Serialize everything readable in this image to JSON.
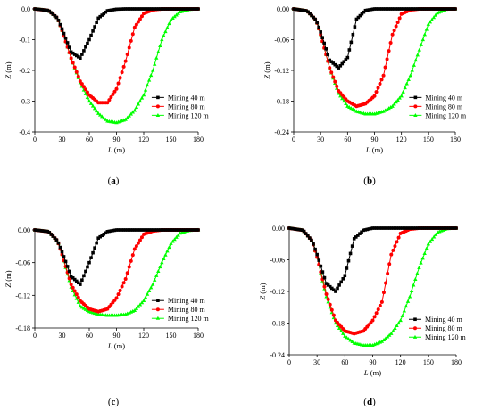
{
  "figure": {
    "panels": [
      {
        "caption": "(a)"
      },
      {
        "caption": "(b)"
      },
      {
        "caption": "(c)"
      },
      {
        "caption": "(d)"
      }
    ]
  },
  "colors": {
    "mining_40": "#000000",
    "mining_80": "#ff0000",
    "mining_120": "#00ff00",
    "axis": "#000000"
  },
  "chart_data": [
    {
      "type": "line",
      "caption": "(a)",
      "xlabel": "L (m)",
      "ylabel": "Z (m)",
      "xlim": [
        0,
        180
      ],
      "ylim": [
        -0.4,
        0.0
      ],
      "xticks": [
        0,
        30,
        60,
        90,
        120,
        150,
        180
      ],
      "yticks": [
        0.0,
        -0.1,
        -0.2,
        -0.3,
        -0.4
      ],
      "ytick_labels": [
        "0.0",
        "-0.1",
        "-0.2",
        "-0.3",
        "-0.4"
      ],
      "grid": false,
      "legend_position": "right",
      "x": [
        0,
        15,
        25,
        30,
        40,
        50,
        60,
        70,
        80,
        90,
        100,
        110,
        120,
        130,
        140,
        150,
        160,
        170,
        180
      ],
      "series": [
        {
          "name": "Mining 40 m",
          "marker": "square",
          "color": "#000000",
          "values": [
            0.0,
            -0.005,
            -0.03,
            -0.065,
            -0.14,
            -0.16,
            -0.1,
            -0.03,
            -0.006,
            -0.001,
            0.0,
            0.0,
            0.0,
            0.0,
            0.0,
            0.0,
            0.0,
            0.0,
            0.0
          ]
        },
        {
          "name": "Mining 80 m",
          "marker": "circle",
          "color": "#ff0000",
          "values": [
            0.0,
            -0.005,
            -0.03,
            -0.07,
            -0.16,
            -0.235,
            -0.28,
            -0.305,
            -0.305,
            -0.26,
            -0.17,
            -0.06,
            -0.015,
            -0.003,
            0.0,
            0.0,
            0.0,
            0.0,
            0.0
          ]
        },
        {
          "name": "Mining 120 m",
          "marker": "triangle",
          "color": "#00ff00",
          "values": [
            0.0,
            -0.005,
            -0.03,
            -0.07,
            -0.16,
            -0.24,
            -0.3,
            -0.34,
            -0.365,
            -0.37,
            -0.36,
            -0.33,
            -0.28,
            -0.2,
            -0.1,
            -0.035,
            -0.01,
            -0.002,
            0.0
          ]
        }
      ]
    },
    {
      "type": "line",
      "caption": "(b)",
      "xlabel": "L (m)",
      "ylabel": "Z (m)",
      "xlim": [
        0,
        180
      ],
      "ylim": [
        -0.24,
        0.0
      ],
      "xticks": [
        0,
        30,
        60,
        90,
        120,
        150,
        180
      ],
      "yticks": [
        0.0,
        -0.06,
        -0.12,
        -0.18,
        -0.24
      ],
      "ytick_labels": [
        "0.00",
        "-0.06",
        "-0.12",
        "-0.18",
        "-0.24"
      ],
      "grid": false,
      "legend_position": "right",
      "x": [
        0,
        15,
        25,
        30,
        40,
        50,
        60,
        70,
        80,
        90,
        100,
        110,
        120,
        130,
        140,
        150,
        160,
        170,
        180
      ],
      "series": [
        {
          "name": "Mining 40 m",
          "marker": "square",
          "color": "#000000",
          "values": [
            0.0,
            -0.004,
            -0.022,
            -0.045,
            -0.1,
            -0.115,
            -0.095,
            -0.02,
            -0.003,
            0.0,
            0.0,
            0.0,
            0.0,
            0.0,
            0.0,
            0.0,
            0.0,
            0.0,
            0.0
          ]
        },
        {
          "name": "Mining 80 m",
          "marker": "circle",
          "color": "#ff0000",
          "values": [
            0.0,
            -0.004,
            -0.022,
            -0.05,
            -0.115,
            -0.16,
            -0.18,
            -0.19,
            -0.185,
            -0.17,
            -0.13,
            -0.05,
            -0.01,
            -0.002,
            0.0,
            0.0,
            0.0,
            0.0,
            0.0
          ]
        },
        {
          "name": "Mining 120 m",
          "marker": "triangle",
          "color": "#00ff00",
          "values": [
            0.0,
            -0.004,
            -0.022,
            -0.05,
            -0.115,
            -0.165,
            -0.19,
            -0.2,
            -0.205,
            -0.205,
            -0.2,
            -0.19,
            -0.17,
            -0.13,
            -0.08,
            -0.03,
            -0.008,
            -0.001,
            0.0
          ]
        }
      ]
    },
    {
      "type": "line",
      "caption": "(c)",
      "xlabel": "L (m)",
      "ylabel": "Z (m)",
      "xlim": [
        0,
        180
      ],
      "ylim": [
        -0.18,
        0.0
      ],
      "xticks": [
        0,
        30,
        60,
        90,
        120,
        150,
        180
      ],
      "yticks": [
        0.0,
        -0.06,
        -0.12,
        -0.18
      ],
      "ytick_labels": [
        "0.00",
        "-0.06",
        "-0.12",
        "-0.18"
      ],
      "grid": false,
      "legend_position": "right",
      "x": [
        0,
        15,
        25,
        30,
        40,
        50,
        60,
        70,
        80,
        90,
        100,
        110,
        120,
        130,
        140,
        150,
        160,
        170,
        180
      ],
      "series": [
        {
          "name": "Mining 40 m",
          "marker": "square",
          "color": "#000000",
          "values": [
            0.0,
            -0.003,
            -0.02,
            -0.04,
            -0.085,
            -0.1,
            -0.06,
            -0.015,
            -0.003,
            0.0,
            0.0,
            0.0,
            0.0,
            0.0,
            0.0,
            0.0,
            0.0,
            0.0,
            0.0
          ]
        },
        {
          "name": "Mining 80 m",
          "marker": "circle",
          "color": "#ff0000",
          "values": [
            0.0,
            -0.003,
            -0.02,
            -0.045,
            -0.1,
            -0.13,
            -0.145,
            -0.15,
            -0.145,
            -0.125,
            -0.09,
            -0.035,
            -0.008,
            -0.002,
            0.0,
            0.0,
            0.0,
            0.0,
            0.0
          ]
        },
        {
          "name": "Mining 120 m",
          "marker": "triangle",
          "color": "#00ff00",
          "values": [
            0.0,
            -0.003,
            -0.02,
            -0.045,
            -0.105,
            -0.14,
            -0.15,
            -0.155,
            -0.157,
            -0.157,
            -0.155,
            -0.148,
            -0.13,
            -0.1,
            -0.06,
            -0.025,
            -0.006,
            -0.001,
            0.0
          ]
        }
      ]
    },
    {
      "type": "line",
      "caption": "(d)",
      "xlabel": "L (m)",
      "ylabel": "Z (m)",
      "xlim": [
        0,
        180
      ],
      "ylim": [
        -0.24,
        0.0
      ],
      "xticks": [
        0,
        30,
        60,
        90,
        120,
        150,
        180
      ],
      "yticks": [
        0.0,
        -0.06,
        -0.12,
        -0.18,
        -0.24
      ],
      "ytick_labels": [
        "0.00",
        "-0.06",
        "-0.12",
        "-0.18",
        "-0.24"
      ],
      "grid": false,
      "legend_position": "right",
      "x": [
        0,
        15,
        25,
        30,
        40,
        50,
        60,
        70,
        80,
        90,
        100,
        110,
        120,
        130,
        140,
        150,
        160,
        170,
        180
      ],
      "series": [
        {
          "name": "Mining 40 m",
          "marker": "square",
          "color": "#000000",
          "values": [
            0.0,
            -0.004,
            -0.025,
            -0.05,
            -0.105,
            -0.12,
            -0.09,
            -0.02,
            -0.004,
            0.0,
            0.0,
            0.0,
            0.0,
            0.0,
            0.0,
            0.0,
            0.0,
            0.0,
            0.0
          ]
        },
        {
          "name": "Mining 80 m",
          "marker": "circle",
          "color": "#ff0000",
          "values": [
            0.0,
            -0.004,
            -0.025,
            -0.055,
            -0.125,
            -0.175,
            -0.195,
            -0.2,
            -0.195,
            -0.175,
            -0.14,
            -0.05,
            -0.01,
            -0.002,
            0.0,
            0.0,
            0.0,
            0.0,
            0.0
          ]
        },
        {
          "name": "Mining 120 m",
          "marker": "triangle",
          "color": "#00ff00",
          "values": [
            0.0,
            -0.004,
            -0.025,
            -0.055,
            -0.13,
            -0.18,
            -0.205,
            -0.218,
            -0.222,
            -0.222,
            -0.215,
            -0.2,
            -0.175,
            -0.13,
            -0.075,
            -0.03,
            -0.008,
            -0.001,
            0.0
          ]
        }
      ]
    }
  ]
}
